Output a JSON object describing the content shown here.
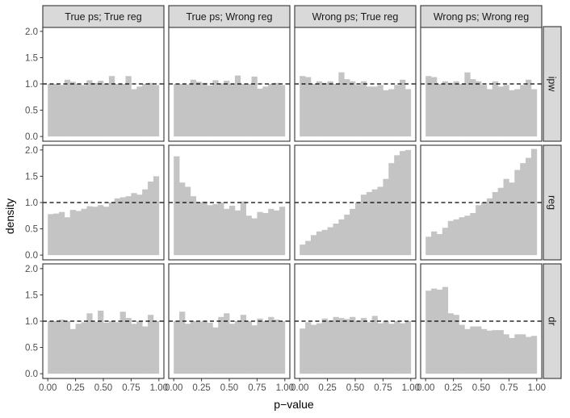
{
  "chart_data": {
    "type": "bar",
    "xlabel": "p−value",
    "ylabel": "density",
    "xlim": [
      0,
      1
    ],
    "ylim": [
      0,
      2.0
    ],
    "x_ticks": [
      "0.00",
      "0.25",
      "0.50",
      "0.75",
      "1.00"
    ],
    "x_tick_values": [
      0,
      0.25,
      0.5,
      0.75,
      1.0
    ],
    "y_ticks": [
      "0.0",
      "0.5",
      "1.0",
      "1.5",
      "2.0"
    ],
    "y_tick_values": [
      0,
      0.5,
      1.0,
      1.5,
      2.0
    ],
    "bins": 20,
    "reference_line": 1.0,
    "columns": [
      "True ps; True reg",
      "True ps; Wrong reg",
      "Wrong ps; True reg",
      "Wrong ps; Wrong reg"
    ],
    "rows": [
      "ipw",
      "reg",
      "dr"
    ],
    "panels": [
      [
        [
          1.0,
          1.0,
          0.98,
          1.08,
          1.04,
          1.0,
          0.98,
          1.07,
          1.02,
          1.06,
          1.0,
          1.15,
          1.0,
          1.0,
          1.15,
          0.9,
          0.95,
          1.0,
          1.02,
          0.98
        ],
        [
          1.0,
          1.0,
          0.99,
          1.08,
          1.04,
          1.02,
          0.97,
          1.07,
          1.01,
          1.06,
          1.0,
          1.16,
          1.0,
          1.0,
          1.14,
          0.91,
          0.95,
          1.0,
          1.02,
          0.98
        ],
        [
          1.15,
          1.13,
          1.0,
          1.05,
          1.02,
          1.05,
          1.0,
          1.22,
          1.09,
          1.05,
          0.98,
          1.05,
          0.95,
          0.95,
          0.98,
          0.88,
          0.9,
          0.98,
          1.08,
          0.9
        ],
        [
          1.15,
          1.13,
          1.0,
          1.05,
          1.02,
          1.05,
          1.0,
          1.22,
          1.09,
          1.05,
          0.98,
          0.9,
          1.05,
          0.95,
          0.98,
          0.88,
          0.9,
          0.98,
          1.08,
          0.9
        ]
      ],
      [
        [
          0.78,
          0.79,
          0.82,
          0.72,
          0.86,
          0.84,
          0.88,
          0.93,
          0.92,
          0.95,
          0.92,
          1.0,
          1.08,
          1.1,
          1.12,
          1.18,
          1.15,
          1.25,
          1.4,
          1.5
        ],
        [
          1.88,
          1.38,
          1.3,
          1.12,
          1.0,
          1.02,
          0.95,
          0.97,
          1.0,
          0.88,
          0.94,
          0.85,
          1.02,
          0.75,
          0.7,
          0.82,
          0.8,
          0.88,
          0.85,
          0.92
        ],
        [
          0.2,
          0.27,
          0.38,
          0.45,
          0.48,
          0.53,
          0.6,
          0.68,
          0.77,
          0.88,
          1.0,
          1.15,
          1.2,
          1.25,
          1.3,
          1.45,
          1.75,
          1.9,
          1.98,
          2.0
        ],
        [
          0.35,
          0.45,
          0.4,
          0.52,
          0.65,
          0.68,
          0.72,
          0.75,
          0.8,
          0.95,
          1.0,
          1.08,
          1.2,
          1.28,
          1.45,
          1.38,
          1.62,
          1.75,
          1.85,
          2.02
        ]
      ],
      [
        [
          1.0,
          1.0,
          1.03,
          1.0,
          0.85,
          0.95,
          0.98,
          1.15,
          0.99,
          1.2,
          0.97,
          1.0,
          0.98,
          1.18,
          1.06,
          0.95,
          1.0,
          0.9,
          1.12,
          1.0
        ],
        [
          1.0,
          1.18,
          0.95,
          1.0,
          0.99,
          1.0,
          0.97,
          0.88,
          1.08,
          1.15,
          0.95,
          1.0,
          1.12,
          1.0,
          0.92,
          1.05,
          1.0,
          1.08,
          1.03,
          1.0
        ],
        [
          0.86,
          0.98,
          0.93,
          0.96,
          1.05,
          1.01,
          1.08,
          1.06,
          1.04,
          1.08,
          1.0,
          1.06,
          0.98,
          1.1,
          0.96,
          1.0,
          0.95,
          1.0,
          0.96,
          1.0
        ],
        [
          1.58,
          1.62,
          1.6,
          1.65,
          1.15,
          1.12,
          0.93,
          0.85,
          0.9,
          0.9,
          0.85,
          0.82,
          0.83,
          0.83,
          0.75,
          0.68,
          0.75,
          0.75,
          0.7,
          0.72
        ]
      ]
    ]
  }
}
